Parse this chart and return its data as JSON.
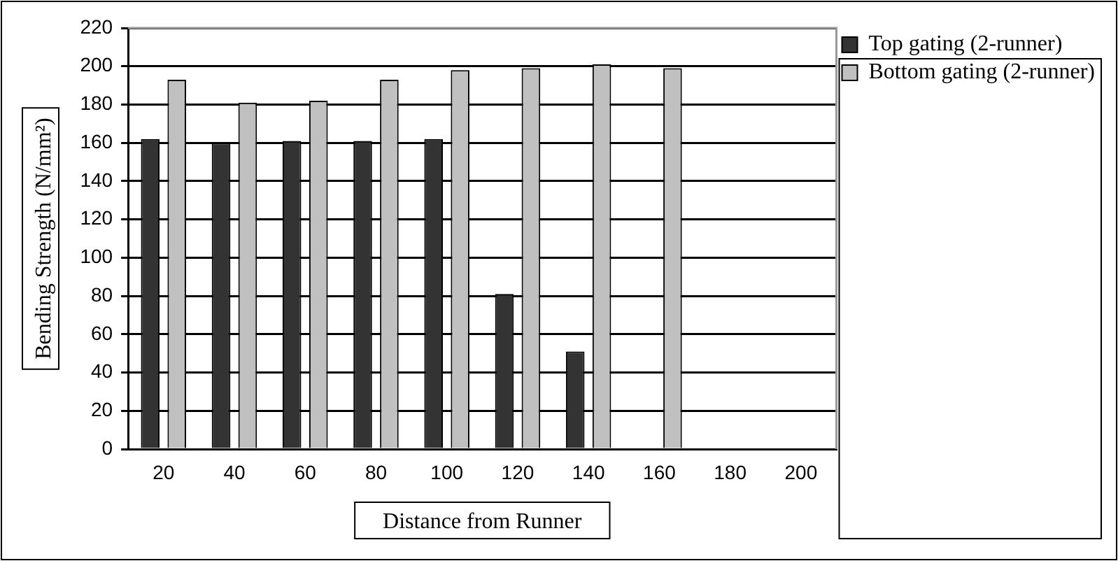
{
  "chart_data": {
    "type": "bar",
    "xlabel": "Distance from Runner",
    "ylabel": "Bending Strength (N/mm²)",
    "categories": [
      "20",
      "40",
      "60",
      "80",
      "100",
      "120",
      "140",
      "160",
      "180",
      "200"
    ],
    "series": [
      {
        "name": "Top gating (2-runner)",
        "color": "#333333",
        "values": [
          162,
          160,
          161,
          161,
          162,
          81,
          51,
          null,
          null,
          null
        ]
      },
      {
        "name": "Bottom gating (2-runner)",
        "color": "#c0c0c0",
        "values": [
          193,
          181,
          182,
          193,
          198,
          199,
          201,
          199,
          null,
          null
        ]
      }
    ],
    "ylim": [
      0,
      220
    ],
    "yticks": [
      0,
      20,
      40,
      60,
      80,
      100,
      120,
      140,
      160,
      180,
      200,
      220
    ],
    "grid": "y",
    "legend": "right"
  }
}
